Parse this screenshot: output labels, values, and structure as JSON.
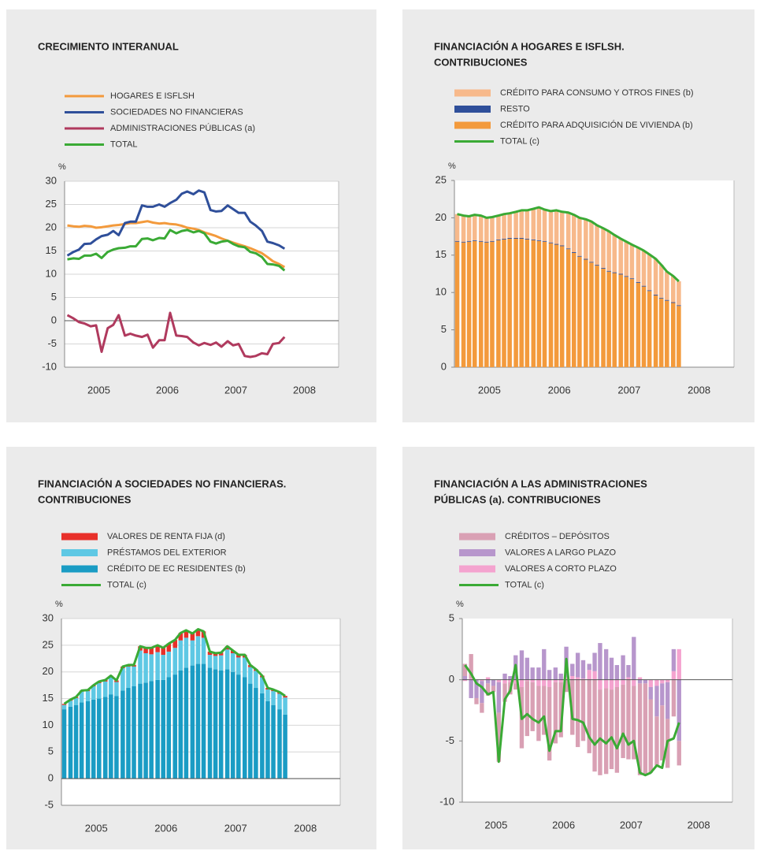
{
  "chart_data": [
    {
      "type": "line",
      "title": [
        "CRECIMIENTO INTERANUAL"
      ],
      "y_unit": "%",
      "grid": true,
      "xlim": [
        2005,
        2009
      ],
      "xticks": [
        {
          "value": 2005.5,
          "label": "2005"
        },
        {
          "value": 2006.5,
          "label": "2006"
        },
        {
          "value": 2007.5,
          "label": "2007"
        },
        {
          "value": 2008.5,
          "label": "2008"
        }
      ],
      "ylim": [
        -10,
        30
      ],
      "yticks": [
        -10,
        -5,
        0,
        5,
        10,
        15,
        20,
        25,
        30
      ],
      "x": [
        2005.04,
        2005.13,
        2005.21,
        2005.29,
        2005.38,
        2005.46,
        2005.54,
        2005.63,
        2005.71,
        2005.79,
        2005.88,
        2005.96,
        2006.04,
        2006.13,
        2006.21,
        2006.29,
        2006.38,
        2006.46,
        2006.54,
        2006.63,
        2006.71,
        2006.79,
        2006.88,
        2006.96,
        2007.04,
        2007.13,
        2007.21,
        2007.29,
        2007.38,
        2007.46,
        2007.54,
        2007.63,
        2007.71,
        2007.79,
        2007.88,
        2007.96,
        2008.04,
        2008.13,
        2008.21
      ],
      "series": [
        {
          "name": "HOGARES E ISFLSH",
          "color": "#f39a3c",
          "values": [
            20.5,
            20.3,
            20.2,
            20.4,
            20.3,
            20.0,
            20.1,
            20.3,
            20.5,
            20.6,
            20.8,
            21.0,
            21.0,
            21.2,
            21.4,
            21.1,
            20.9,
            21.0,
            20.8,
            20.7,
            20.4,
            20.0,
            19.8,
            19.5,
            19.0,
            18.6,
            18.2,
            17.7,
            17.2,
            16.8,
            16.4,
            16.0,
            15.6,
            15.1,
            14.5,
            13.7,
            12.8,
            12.2,
            11.5
          ]
        },
        {
          "name": "SOCIEDADES NO FINANCIERAS",
          "color": "#2f4f9a",
          "values": [
            14.0,
            14.8,
            15.3,
            16.5,
            16.6,
            17.5,
            18.2,
            18.5,
            19.3,
            18.4,
            21.0,
            21.3,
            21.3,
            24.8,
            24.5,
            24.5,
            25.0,
            24.5,
            25.3,
            26.0,
            27.3,
            27.8,
            27.2,
            28.0,
            27.6,
            23.8,
            23.5,
            23.6,
            24.8,
            24.0,
            23.2,
            23.2,
            21.3,
            20.5,
            19.3,
            17.0,
            16.7,
            16.2,
            15.5
          ]
        },
        {
          "name": "ADMINISTRACIONES PÚBLICAS (a)",
          "color": "#b03a5e",
          "values": [
            1.2,
            0.5,
            -0.3,
            -0.6,
            -1.2,
            -1.0,
            -6.7,
            -1.6,
            -0.9,
            1.2,
            -3.2,
            -2.8,
            -3.2,
            -3.5,
            -3.0,
            -5.8,
            -4.2,
            -4.2,
            1.7,
            -3.2,
            -3.3,
            -3.5,
            -4.7,
            -5.3,
            -4.8,
            -5.2,
            -4.7,
            -5.6,
            -4.4,
            -5.3,
            -5.0,
            -7.6,
            -7.8,
            -7.6,
            -7.0,
            -7.2,
            -5.0,
            -4.8,
            -3.5
          ]
        },
        {
          "name": "TOTAL",
          "color": "#3aaa35",
          "values": [
            13.2,
            13.4,
            13.3,
            14.0,
            14.0,
            14.4,
            13.5,
            14.8,
            15.3,
            15.6,
            15.7,
            16.0,
            16.0,
            17.6,
            17.7,
            17.3,
            17.8,
            17.7,
            19.5,
            18.8,
            19.3,
            19.5,
            19.0,
            19.3,
            18.8,
            17.0,
            16.6,
            17.0,
            17.2,
            16.5,
            16.0,
            15.8,
            14.8,
            14.5,
            13.7,
            12.2,
            12.1,
            11.8,
            10.8
          ]
        }
      ]
    },
    {
      "type": "bar",
      "title": [
        "FINANCIACIÓN A HOGARES E ISFLSH.",
        "CONTRIBUCIONES"
      ],
      "y_unit": "%",
      "grid": false,
      "xlim": [
        2005,
        2009
      ],
      "xticks": [
        {
          "value": 2005.5,
          "label": "2005"
        },
        {
          "value": 2006.5,
          "label": "2006"
        },
        {
          "value": 2007.5,
          "label": "2007"
        },
        {
          "value": 2008.5,
          "label": "2008"
        }
      ],
      "ylim": [
        0,
        25
      ],
      "yticks": [
        0,
        5,
        10,
        15,
        20,
        25
      ],
      "x": [
        2005.04,
        2005.13,
        2005.21,
        2005.29,
        2005.38,
        2005.46,
        2005.54,
        2005.63,
        2005.71,
        2005.79,
        2005.88,
        2005.96,
        2006.04,
        2006.13,
        2006.21,
        2006.29,
        2006.38,
        2006.46,
        2006.54,
        2006.63,
        2006.71,
        2006.79,
        2006.88,
        2006.96,
        2007.04,
        2007.13,
        2007.21,
        2007.29,
        2007.38,
        2007.46,
        2007.54,
        2007.63,
        2007.71,
        2007.79,
        2007.88,
        2007.96,
        2008.04,
        2008.13,
        2008.21
      ],
      "series": [
        {
          "name": "CRÉDITO PARA CONSUMO Y OTROS FINES (b)",
          "color": "#f7b98b",
          "values": [
            3.6,
            3.5,
            3.3,
            3.4,
            3.4,
            3.2,
            3.2,
            3.2,
            3.3,
            3.3,
            3.5,
            3.7,
            3.8,
            4.1,
            4.4,
            4.2,
            4.2,
            4.5,
            4.5,
            4.8,
            5.0,
            5.1,
            5.3,
            5.4,
            5.3,
            5.3,
            5.3,
            5.0,
            4.7,
            4.6,
            4.5,
            4.6,
            4.7,
            4.8,
            4.8,
            4.4,
            3.8,
            3.5,
            3.2
          ]
        },
        {
          "name": "RESTO",
          "color": "#2f4f9a",
          "values": [
            0.1,
            0.1,
            0.1,
            0.1,
            0.1,
            0.1,
            0.1,
            0.1,
            0.1,
            0.1,
            0.1,
            0.1,
            0.1,
            0.1,
            0.1,
            0.1,
            0.1,
            0.1,
            0.1,
            0.1,
            0.1,
            0.1,
            0.1,
            0.1,
            0.1,
            0.1,
            0.1,
            0.1,
            0.1,
            0.1,
            0.1,
            0.1,
            0.1,
            0.1,
            0.1,
            0.1,
            0.1,
            0.1,
            0.1
          ]
        },
        {
          "name": "CRÉDITO PARA ADQUISICIÓN DE VIVIENDA (b)",
          "color": "#f39a3c",
          "values": [
            16.8,
            16.7,
            16.8,
            16.9,
            16.8,
            16.7,
            16.8,
            17.0,
            17.1,
            17.2,
            17.2,
            17.2,
            17.1,
            17.0,
            16.9,
            16.8,
            16.6,
            16.4,
            16.2,
            15.8,
            15.3,
            14.8,
            14.4,
            14.0,
            13.6,
            13.2,
            12.8,
            12.6,
            12.4,
            12.1,
            11.8,
            11.3,
            10.8,
            10.2,
            9.6,
            9.2,
            8.9,
            8.6,
            8.2
          ]
        },
        {
          "name": "TOTAL (c)",
          "color": "#3aaa35",
          "type": "line",
          "values": [
            20.5,
            20.3,
            20.2,
            20.4,
            20.3,
            20.0,
            20.1,
            20.3,
            20.5,
            20.6,
            20.8,
            21.0,
            21.0,
            21.2,
            21.4,
            21.1,
            20.9,
            21.0,
            20.8,
            20.7,
            20.4,
            20.0,
            19.8,
            19.5,
            19.0,
            18.6,
            18.2,
            17.7,
            17.2,
            16.8,
            16.4,
            16.0,
            15.6,
            15.1,
            14.5,
            13.7,
            12.8,
            12.2,
            11.5
          ]
        }
      ]
    },
    {
      "type": "bar",
      "title": [
        "FINANCIACIÓN A SOCIEDADES NO FINANCIERAS.",
        "CONTRIBUCIONES"
      ],
      "y_unit": "%",
      "grid": true,
      "xlim": [
        2005,
        2009
      ],
      "xticks": [
        {
          "value": 2005.5,
          "label": "2005"
        },
        {
          "value": 2006.5,
          "label": "2006"
        },
        {
          "value": 2007.5,
          "label": "2007"
        },
        {
          "value": 2008.5,
          "label": "2008"
        }
      ],
      "ylim": [
        -5,
        30
      ],
      "yticks": [
        -5,
        0,
        5,
        10,
        15,
        20,
        25,
        30
      ],
      "x": [
        2005.04,
        2005.13,
        2005.21,
        2005.29,
        2005.38,
        2005.46,
        2005.54,
        2005.63,
        2005.71,
        2005.79,
        2005.88,
        2005.96,
        2006.04,
        2006.13,
        2006.21,
        2006.29,
        2006.38,
        2006.46,
        2006.54,
        2006.63,
        2006.71,
        2006.79,
        2006.88,
        2006.96,
        2007.04,
        2007.13,
        2007.21,
        2007.29,
        2007.38,
        2007.46,
        2007.54,
        2007.63,
        2007.71,
        2007.79,
        2007.88,
        2007.96,
        2008.04,
        2008.13,
        2008.21
      ],
      "series": [
        {
          "name": "VALORES DE RENTA FIJA (d)",
          "color": "#e8302a",
          "values": [
            0.2,
            0.2,
            0.2,
            0.2,
            0.2,
            0.2,
            0.3,
            0.3,
            0.3,
            0.3,
            0.3,
            0.3,
            0.3,
            0.8,
            1.0,
            1.2,
            1.3,
            1.3,
            1.5,
            1.5,
            1.4,
            1.4,
            1.3,
            1.3,
            1.2,
            0.6,
            0.5,
            0.5,
            0.6,
            0.5,
            0.5,
            0.5,
            0.4,
            0.3,
            0.3,
            0.3,
            0.3,
            0.3,
            0.3
          ]
        },
        {
          "name": "PRÉSTAMOS DEL EXTERIOR",
          "color": "#5ec8e4",
          "values": [
            0.8,
            1.1,
            1.3,
            2.0,
            1.9,
            2.5,
            2.9,
            2.9,
            3.2,
            2.6,
            4.2,
            4.0,
            3.7,
            6.2,
            5.5,
            5.0,
            5.2,
            4.7,
            4.8,
            5.0,
            5.6,
            5.6,
            4.7,
            5.2,
            4.9,
            2.4,
            2.5,
            2.8,
            3.7,
            3.5,
            3.2,
            3.7,
            3.1,
            3.2,
            3.0,
            2.2,
            2.6,
            2.9,
            3.2
          ]
        },
        {
          "name": "CRÉDITO DE EC RESIDENTES (b)",
          "color": "#1a9cc4",
          "values": [
            13.0,
            13.5,
            13.8,
            14.3,
            14.5,
            14.8,
            15.0,
            15.3,
            15.8,
            15.5,
            16.5,
            17.0,
            17.3,
            17.8,
            18.0,
            18.3,
            18.5,
            18.5,
            19.0,
            19.5,
            20.3,
            20.8,
            21.2,
            21.5,
            21.5,
            20.8,
            20.5,
            20.3,
            20.5,
            20.0,
            19.5,
            19.0,
            17.8,
            17.0,
            16.0,
            14.5,
            13.8,
            13.0,
            12.0
          ]
        },
        {
          "name": "TOTAL (c)",
          "color": "#3aaa35",
          "type": "line",
          "values": [
            14.0,
            14.8,
            15.3,
            16.5,
            16.6,
            17.5,
            18.2,
            18.5,
            19.3,
            18.4,
            21.0,
            21.3,
            21.3,
            24.8,
            24.5,
            24.5,
            25.0,
            24.5,
            25.3,
            26.0,
            27.3,
            27.8,
            27.2,
            28.0,
            27.6,
            23.8,
            23.5,
            23.6,
            24.8,
            24.0,
            23.2,
            23.2,
            21.3,
            20.5,
            19.3,
            17.0,
            16.7,
            16.2,
            15.5
          ]
        }
      ]
    },
    {
      "type": "bar",
      "title": [
        "FINANCIACIÓN A LAS ADMINISTRACIONES",
        "PÚBLICAS (a). CONTRIBUCIONES"
      ],
      "y_unit": "%",
      "grid": false,
      "xlim": [
        2005,
        2009
      ],
      "xticks": [
        {
          "value": 2005.5,
          "label": "2005"
        },
        {
          "value": 2006.5,
          "label": "2006"
        },
        {
          "value": 2007.5,
          "label": "2007"
        },
        {
          "value": 2008.5,
          "label": "2008"
        }
      ],
      "ylim": [
        -10,
        5
      ],
      "yticks": [
        -10,
        -5,
        0,
        5
      ],
      "x": [
        2005.04,
        2005.13,
        2005.21,
        2005.29,
        2005.38,
        2005.46,
        2005.54,
        2005.63,
        2005.71,
        2005.79,
        2005.88,
        2005.96,
        2006.04,
        2006.13,
        2006.21,
        2006.29,
        2006.38,
        2006.46,
        2006.54,
        2006.63,
        2006.71,
        2006.79,
        2006.88,
        2006.96,
        2007.04,
        2007.13,
        2007.21,
        2007.29,
        2007.38,
        2007.46,
        2007.54,
        2007.63,
        2007.71,
        2007.79,
        2007.88,
        2007.96,
        2008.04,
        2008.13,
        2008.21
      ],
      "series": [
        {
          "name": "CRÉDITOS – DEPÓSITOS",
          "color": "#d9a0b4",
          "values": [
            1.0,
            2.0,
            -0.5,
            -0.8,
            -1.0,
            -0.5,
            -4.0,
            -1.5,
            -1.0,
            -0.5,
            -5.0,
            -4.5,
            -4.0,
            -4.5,
            -4.0,
            -6.0,
            -5.0,
            -4.5,
            -1.0,
            -4.5,
            -5.5,
            -5.0,
            -6.0,
            -7.5,
            -7.0,
            -7.0,
            -6.5,
            -7.0,
            -6.0,
            -6.5,
            -6.0,
            -7.5,
            -7.5,
            -6.0,
            -4.0,
            -4.5,
            -4.0,
            -3.0,
            -2.0
          ]
        },
        {
          "name": "VALORES A LARGO PLAZO",
          "color": "#b796cc",
          "values": [
            0.3,
            -1.5,
            -1.5,
            -1.8,
            -0.3,
            -0.5,
            -2.5,
            0.5,
            0.3,
            2.0,
            2.4,
            1.8,
            1.0,
            1.0,
            2.5,
            0.8,
            1.0,
            0.5,
            2.5,
            1.0,
            2.0,
            1.5,
            0.5,
            1.5,
            3.0,
            2.5,
            1.8,
            1.2,
            2.0,
            1.0,
            3.5,
            -0.3,
            -0.3,
            -1.0,
            -2.5,
            -1.8,
            -3.0,
            1.8,
            -5.0
          ]
        },
        {
          "name": "VALORES A CORTO PLAZO",
          "color": "#f4a3cf",
          "values": [
            -0.1,
            0.1,
            0.0,
            -0.1,
            0.2,
            0.0,
            -0.2,
            -0.3,
            -0.2,
            -0.3,
            -0.6,
            -0.1,
            -0.2,
            -0.5,
            -0.5,
            -0.6,
            -0.2,
            -0.2,
            0.2,
            0.3,
            0.2,
            0.1,
            0.8,
            0.7,
            -0.8,
            -0.7,
            -0.8,
            -0.6,
            -0.4,
            0.2,
            -0.5,
            0.2,
            0.0,
            -0.6,
            -0.5,
            -0.3,
            -0.2,
            0.7,
            2.5
          ]
        },
        {
          "name": "TOTAL (c)",
          "color": "#3aaa35",
          "type": "line",
          "values": [
            1.2,
            0.5,
            -0.3,
            -0.6,
            -1.2,
            -1.0,
            -6.7,
            -1.6,
            -0.9,
            1.2,
            -3.2,
            -2.8,
            -3.2,
            -3.5,
            -3.0,
            -5.8,
            -4.2,
            -4.2,
            1.7,
            -3.2,
            -3.3,
            -3.5,
            -4.7,
            -5.3,
            -4.8,
            -5.2,
            -4.7,
            -5.6,
            -4.4,
            -5.3,
            -5.0,
            -7.6,
            -7.8,
            -7.6,
            -7.0,
            -7.2,
            -5.0,
            -4.8,
            -3.5
          ]
        }
      ]
    }
  ]
}
